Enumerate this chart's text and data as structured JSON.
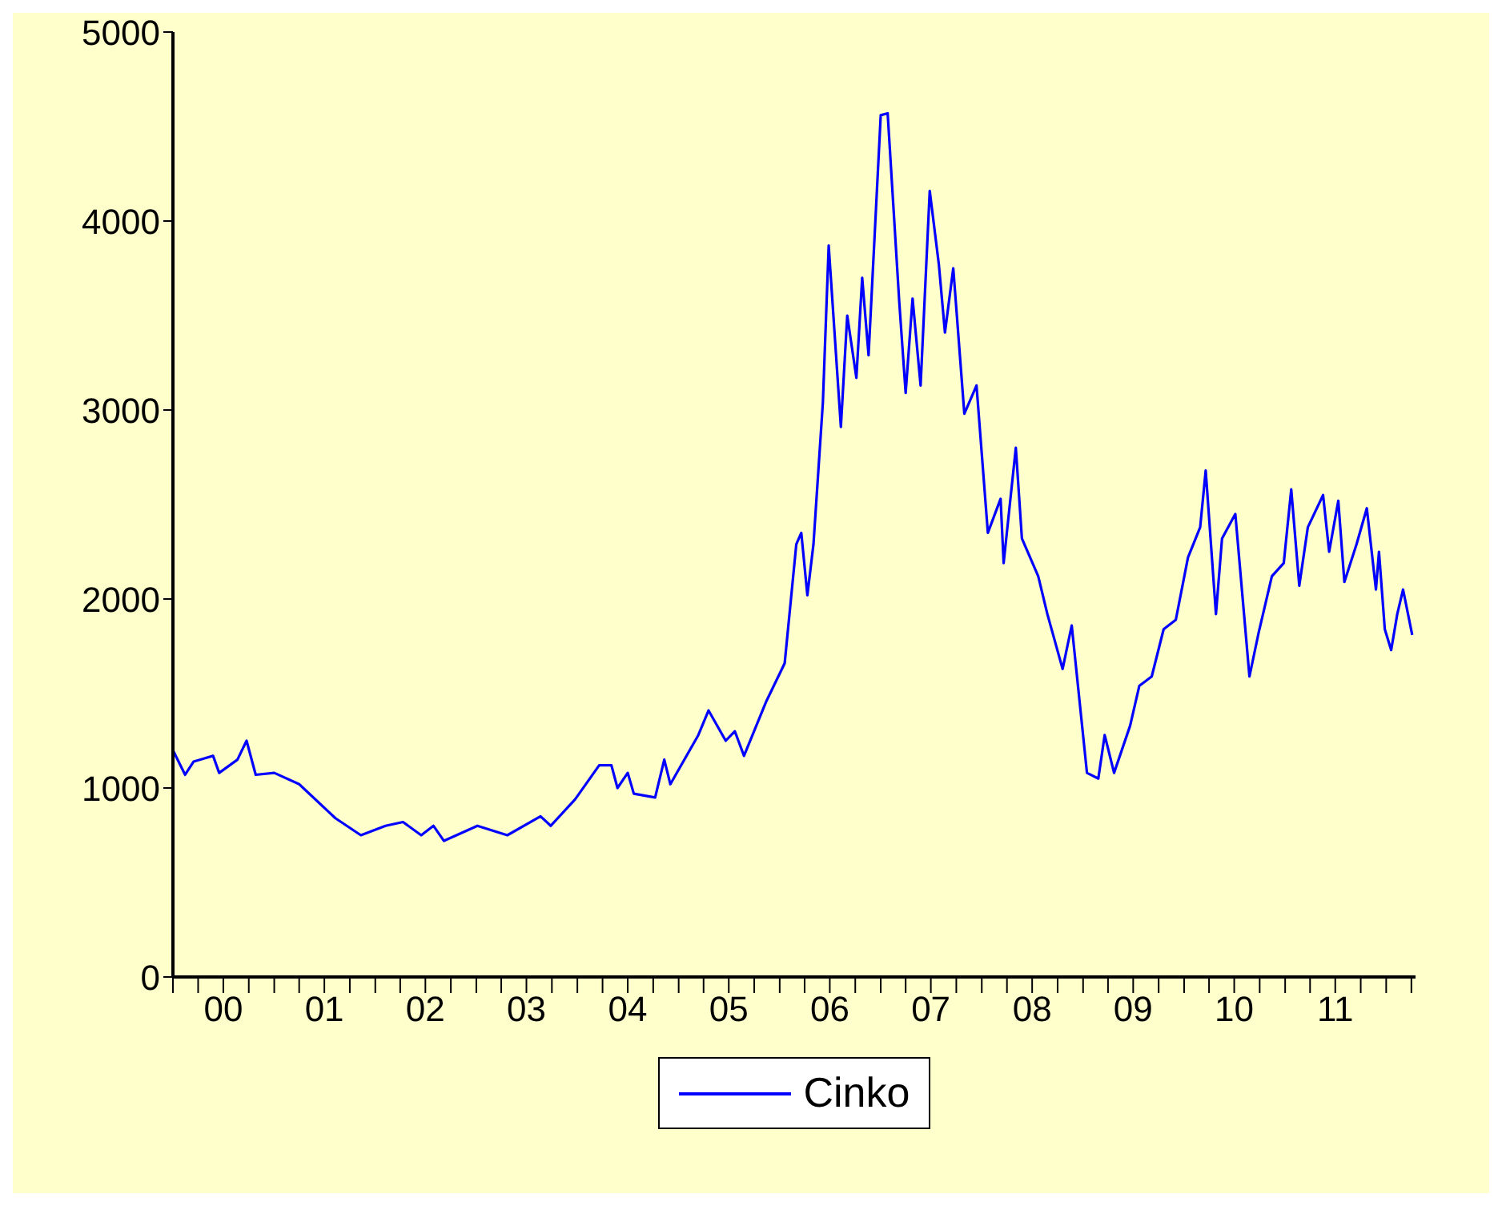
{
  "chart_data": {
    "type": "line",
    "legend": "bottom",
    "grid": false,
    "marker": "none",
    "line_style": "solid",
    "xlim": [
      "2000-01-01",
      "2012-04-16"
    ],
    "ylim": [
      0,
      5000
    ],
    "yticks": [
      0,
      1000,
      2000,
      3000,
      4000,
      5000
    ],
    "xticks": [
      {
        "value": "2000-01-01",
        "label": null
      },
      {
        "value": "2000-04-01",
        "label": null
      },
      {
        "value": "2000-07-01",
        "label": "00"
      },
      {
        "value": "2000-10-01",
        "label": null
      },
      {
        "value": "2001-01-01",
        "label": null
      },
      {
        "value": "2001-04-01",
        "label": null
      },
      {
        "value": "2001-07-01",
        "label": "01"
      },
      {
        "value": "2001-10-01",
        "label": null
      },
      {
        "value": "2002-01-01",
        "label": null
      },
      {
        "value": "2002-04-01",
        "label": null
      },
      {
        "value": "2002-07-01",
        "label": "02"
      },
      {
        "value": "2002-10-01",
        "label": null
      },
      {
        "value": "2003-01-01",
        "label": null
      },
      {
        "value": "2003-04-01",
        "label": null
      },
      {
        "value": "2003-07-01",
        "label": "03"
      },
      {
        "value": "2003-10-01",
        "label": null
      },
      {
        "value": "2004-01-01",
        "label": null
      },
      {
        "value": "2004-04-01",
        "label": null
      },
      {
        "value": "2004-07-01",
        "label": "04"
      },
      {
        "value": "2004-10-01",
        "label": null
      },
      {
        "value": "2005-01-01",
        "label": null
      },
      {
        "value": "2005-04-01",
        "label": null
      },
      {
        "value": "2005-07-01",
        "label": "05"
      },
      {
        "value": "2005-10-01",
        "label": null
      },
      {
        "value": "2006-01-01",
        "label": null
      },
      {
        "value": "2006-04-01",
        "label": null
      },
      {
        "value": "2006-07-01",
        "label": "06"
      },
      {
        "value": "2006-10-01",
        "label": null
      },
      {
        "value": "2007-01-01",
        "label": null
      },
      {
        "value": "2007-04-01",
        "label": null
      },
      {
        "value": "2007-07-01",
        "label": "07"
      },
      {
        "value": "2007-10-01",
        "label": null
      },
      {
        "value": "2008-01-01",
        "label": null
      },
      {
        "value": "2008-04-01",
        "label": null
      },
      {
        "value": "2008-07-01",
        "label": "08"
      },
      {
        "value": "2008-10-01",
        "label": null
      },
      {
        "value": "2009-01-01",
        "label": null
      },
      {
        "value": "2009-04-01",
        "label": null
      },
      {
        "value": "2009-07-01",
        "label": "09"
      },
      {
        "value": "2009-10-01",
        "label": null
      },
      {
        "value": "2010-01-01",
        "label": null
      },
      {
        "value": "2010-04-01",
        "label": null
      },
      {
        "value": "2010-07-01",
        "label": "10"
      },
      {
        "value": "2010-10-01",
        "label": null
      },
      {
        "value": "2011-01-01",
        "label": null
      },
      {
        "value": "2011-04-01",
        "label": null
      },
      {
        "value": "2011-07-01",
        "label": "11"
      },
      {
        "value": "2011-10-01",
        "label": null
      },
      {
        "value": "2012-01-01",
        "label": null
      },
      {
        "value": "2012-04-01",
        "label": null
      }
    ],
    "x": [
      "2000-01-01",
      "2000-02-14",
      "2000-03-16",
      "2000-05-25",
      "2000-06-16",
      "2000-08-21",
      "2000-09-23",
      "2000-10-26",
      "2001-01-01",
      "2001-04-01",
      "2001-08-10",
      "2001-11-10",
      "2002-02-07",
      "2002-04-11",
      "2002-06-16",
      "2002-07-30",
      "2002-09-06",
      "2003-01-05",
      "2003-04-23",
      "2003-08-21",
      "2003-09-27",
      "2003-12-24",
      "2004-03-20",
      "2004-05-03",
      "2004-05-25",
      "2004-07-01",
      "2004-07-23",
      "2004-10-08",
      "2004-11-10",
      "2004-12-02",
      "2005-03-13",
      "2005-04-19",
      "2005-06-20",
      "2005-07-23",
      "2005-08-25",
      "2005-11-14",
      "2006-01-19",
      "2006-03-02",
      "2006-03-20",
      "2006-04-11",
      "2006-05-03",
      "2006-06-06",
      "2006-06-27",
      "2006-08-10",
      "2006-09-02",
      "2006-10-05",
      "2006-10-26",
      "2006-11-18",
      "2007-01-01",
      "2007-01-26",
      "2007-03-09",
      "2007-04-01",
      "2007-04-26",
      "2007-05-25",
      "2007-06-27",
      "2007-07-30",
      "2007-08-21",
      "2007-09-20",
      "2007-10-30",
      "2007-12-13",
      "2008-01-23",
      "2008-03-09",
      "2008-03-20",
      "2008-05-03",
      "2008-05-25",
      "2008-07-23",
      "2008-08-25",
      "2008-10-19",
      "2008-11-21",
      "2009-01-15",
      "2009-02-25",
      "2009-03-20",
      "2009-04-23",
      "2009-06-20",
      "2009-07-23",
      "2009-09-06",
      "2009-10-19",
      "2009-12-02",
      "2010-01-15",
      "2010-02-28",
      "2010-03-20",
      "2010-04-26",
      "2010-05-18",
      "2010-07-05",
      "2010-08-25",
      "2010-09-27",
      "2010-11-14",
      "2010-12-27",
      "2011-01-23",
      "2011-02-21",
      "2011-03-24",
      "2011-05-18",
      "2011-06-09",
      "2011-07-12",
      "2011-08-03",
      "2011-09-16",
      "2011-10-23",
      "2011-11-25",
      "2011-12-06",
      "2011-12-27",
      "2012-01-19",
      "2012-02-10",
      "2012-03-02",
      "2012-04-04"
    ],
    "series": [
      {
        "name": "Cinko",
        "color": "#0000ff",
        "values": [
          1200,
          1070,
          1140,
          1170,
          1080,
          1150,
          1250,
          1070,
          1080,
          1020,
          840,
          750,
          800,
          820,
          750,
          800,
          720,
          800,
          750,
          850,
          800,
          940,
          1120,
          1120,
          1000,
          1080,
          970,
          950,
          1150,
          1020,
          1280,
          1410,
          1250,
          1300,
          1170,
          1460,
          1660,
          2290,
          2350,
          2020,
          2290,
          3040,
          3870,
          2910,
          3500,
          3170,
          3700,
          3290,
          4560,
          4570,
          3570,
          3090,
          3590,
          3130,
          4160,
          3770,
          3410,
          3750,
          2980,
          3130,
          2350,
          2530,
          2190,
          2800,
          2320,
          2120,
          1920,
          1630,
          1860,
          1080,
          1050,
          1280,
          1080,
          1330,
          1540,
          1590,
          1840,
          1890,
          2220,
          2380,
          2680,
          1920,
          2320,
          2450,
          1590,
          1820,
          2120,
          2190,
          2580,
          2070,
          2380,
          2550,
          2250,
          2520,
          2090,
          2290,
          2480,
          2050,
          2250,
          1840,
          1730,
          1920,
          2050,
          1810
        ]
      }
    ]
  }
}
